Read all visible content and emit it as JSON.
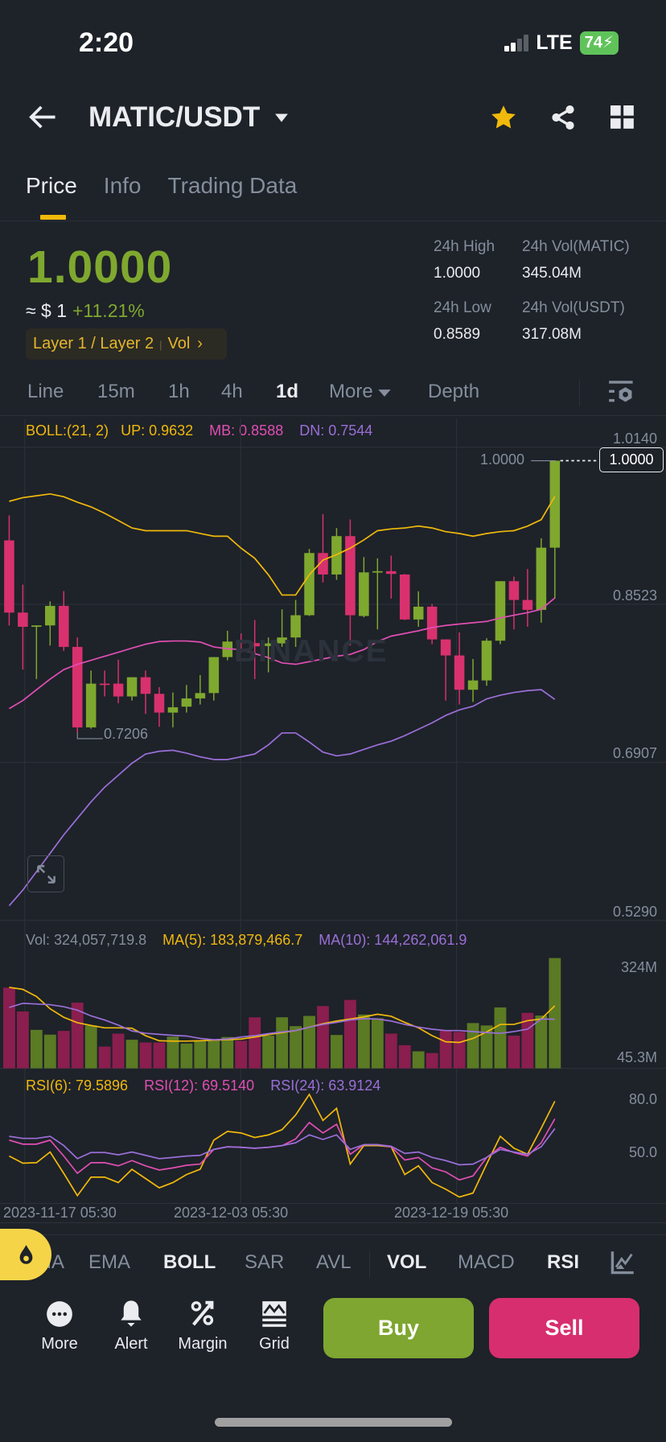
{
  "status_bar": {
    "time": "2:20",
    "network": "LTE",
    "battery": "74"
  },
  "header": {
    "pair": "MATIC/USDT"
  },
  "tabs": [
    {
      "label": "Price",
      "active": true
    },
    {
      "label": "Info"
    },
    {
      "label": "Trading Data"
    }
  ],
  "ticker": {
    "last_price": "1.0000",
    "usd_equiv": "≈ $ 1",
    "change": "+11.21%",
    "tag": "Layer 1 / Layer 2",
    "tag_vol": "Vol",
    "stats": [
      {
        "label": "24h High",
        "value": "1.0000"
      },
      {
        "label": "24h Vol(MATIC)",
        "value": "345.04M"
      },
      {
        "label": "24h Low",
        "value": "0.8589"
      },
      {
        "label": "24h Vol(USDT)",
        "value": "317.08M"
      }
    ]
  },
  "intervals": [
    {
      "label": "Line"
    },
    {
      "label": "15m"
    },
    {
      "label": "1h"
    },
    {
      "label": "4h"
    },
    {
      "label": "1d",
      "active": true
    },
    {
      "label": "More"
    },
    {
      "label": "Depth"
    }
  ],
  "boll_legend": {
    "params": "BOLL:(21, 2)",
    "up": "UP: 0.9632",
    "mb": "MB: 0.8588",
    "dn": "DN: 0.7544"
  },
  "price_axis": [
    "1.0140",
    "0.8523",
    "0.6907",
    "0.5290"
  ],
  "last_price_label": "1.0000",
  "last_price_box": "1.0000",
  "low_marker": "0.7206",
  "watermark": "BINANCE",
  "vol_legend": {
    "vol": "Vol: 324,057,719.8",
    "ma5": "MA(5): 183,879,466.7",
    "ma10": "MA(10): 144,262,061.9"
  },
  "vol_axis": [
    "324M",
    "45.3M"
  ],
  "rsi_legend": {
    "rsi6": "RSI(6): 79.5896",
    "rsi12": "RSI(12): 69.5140",
    "rsi24": "RSI(24): 63.9124"
  },
  "rsi_axis": [
    "80.0",
    "50.0"
  ],
  "time_axis": [
    "2023-11-17 05:30",
    "2023-12-03 05:30",
    "2023-12-19 05:30"
  ],
  "indicators": [
    {
      "label": "MA"
    },
    {
      "label": "EMA"
    },
    {
      "label": "BOLL",
      "on": true
    },
    {
      "label": "SAR"
    },
    {
      "label": "AVL"
    },
    {
      "label": "VOL",
      "on": true
    },
    {
      "label": "MACD"
    },
    {
      "label": "RSI",
      "on": true
    }
  ],
  "actions": [
    {
      "label": "More",
      "icon": "more-icon"
    },
    {
      "label": "Alert",
      "icon": "bell-icon"
    },
    {
      "label": "Margin",
      "icon": "percent-icon"
    },
    {
      "label": "Grid",
      "icon": "grid-bot-icon"
    }
  ],
  "buy_label": "Buy",
  "sell_label": "Sell",
  "colors": {
    "up": "#7fa82f",
    "down": "#d8316e",
    "accent": "#f0b90b",
    "boll_up": "#f0b90b",
    "boll_mb": "#e04fb3",
    "boll_dn": "#9a6fd8",
    "buy": "#7ea630",
    "sell": "#d72e6f"
  },
  "chart_data": {
    "type": "candlestick",
    "price_range": [
      0.529,
      1.014
    ],
    "candles": [
      [
        0.918,
        0.9437,
        0.8305,
        0.8437
      ],
      [
        0.8437,
        0.8725,
        0.785,
        0.8291
      ],
      [
        0.8297,
        0.8305,
        0.7753,
        0.8305
      ],
      [
        0.8305,
        0.8553,
        0.8098,
        0.8506
      ],
      [
        0.8506,
        0.8658,
        0.8043,
        0.8084
      ],
      [
        0.8084,
        0.8181,
        0.7206,
        0.7256
      ],
      [
        0.7256,
        0.7841,
        0.7242,
        0.7706
      ],
      [
        0.7706,
        0.7841,
        0.7574,
        0.7692
      ],
      [
        0.7706,
        0.7952,
        0.7505,
        0.7574
      ],
      [
        0.7574,
        0.7772,
        0.7532,
        0.7772
      ],
      [
        0.7772,
        0.7841,
        0.7394,
        0.7601
      ],
      [
        0.7601,
        0.767,
        0.7262,
        0.7408
      ],
      [
        0.7408,
        0.7615,
        0.7256,
        0.7463
      ],
      [
        0.7469,
        0.7692,
        0.7408,
        0.7554
      ],
      [
        0.7554,
        0.7794,
        0.7491,
        0.7609
      ],
      [
        0.7609,
        0.7979,
        0.7532,
        0.7979
      ],
      [
        0.7979,
        0.825,
        0.7946,
        0.8139
      ],
      [
        0.8139,
        0.8222,
        0.8029,
        0.8123
      ],
      [
        0.8123,
        0.836,
        0.7753,
        0.809
      ],
      [
        0.8093,
        0.8181,
        0.7822,
        0.812
      ],
      [
        0.812,
        0.8471,
        0.8084,
        0.8181
      ],
      [
        0.8181,
        0.8567,
        0.8084,
        0.841
      ],
      [
        0.841,
        0.9092,
        0.8402,
        0.905
      ],
      [
        0.905,
        0.945,
        0.8747,
        0.8829
      ],
      [
        0.8829,
        0.9307,
        0.8774,
        0.9224
      ],
      [
        0.9224,
        0.9395,
        0.8098,
        0.841
      ],
      [
        0.8402,
        0.9009,
        0.8388,
        0.8851
      ],
      [
        0.8854,
        0.8995,
        0.8264,
        0.8863
      ],
      [
        0.8863,
        0.9023,
        0.8581,
        0.8835
      ],
      [
        0.8829,
        0.8835,
        0.836,
        0.8366
      ],
      [
        0.8366,
        0.8656,
        0.8291,
        0.8498
      ],
      [
        0.8498,
        0.8526,
        0.8112,
        0.8161
      ],
      [
        0.8161,
        0.8161,
        0.7532,
        0.7996
      ],
      [
        0.7996,
        0.8233,
        0.7491,
        0.7643
      ],
      [
        0.7643,
        0.796,
        0.7518,
        0.7739
      ],
      [
        0.7739,
        0.8173,
        0.7684,
        0.8148
      ],
      [
        0.8148,
        0.876,
        0.8112,
        0.876
      ],
      [
        0.876,
        0.8807,
        0.8264,
        0.8567
      ],
      [
        0.8567,
        0.8885,
        0.8291,
        0.8465
      ],
      [
        0.8465,
        0.9202,
        0.8333,
        0.9105
      ],
      [
        0.9105,
        1.0,
        0.8581,
        1.0
      ]
    ],
    "candle_fields": [
      "open",
      "high",
      "low",
      "close"
    ],
    "boll_up": [
      0.9582,
      0.962,
      0.9639,
      0.9658,
      0.9629,
      0.9573,
      0.9525,
      0.9459,
      0.9384,
      0.9308,
      0.928,
      0.928,
      0.928,
      0.928,
      0.9251,
      0.9223,
      0.9223,
      0.91,
      0.8996,
      0.8826,
      0.8618,
      0.8618,
      0.8826,
      0.8977,
      0.9034,
      0.91,
      0.9185,
      0.928,
      0.9298,
      0.9308,
      0.9327,
      0.9308,
      0.927,
      0.9251,
      0.9223,
      0.9251,
      0.927,
      0.928,
      0.9327,
      0.9393,
      0.9632
    ],
    "boll_mb": [
      0.7449,
      0.7532,
      0.7643,
      0.7753,
      0.785,
      0.7905,
      0.7946,
      0.7988,
      0.8029,
      0.8071,
      0.8112,
      0.8139,
      0.8145,
      0.8145,
      0.8134,
      0.8084,
      0.8065,
      0.8057,
      0.8015,
      0.7974,
      0.7919,
      0.7905,
      0.7932,
      0.796,
      0.7988,
      0.8007,
      0.8057,
      0.8139,
      0.8195,
      0.8222,
      0.825,
      0.8283,
      0.8305,
      0.8319,
      0.8333,
      0.8346,
      0.8382,
      0.841,
      0.8437,
      0.8471,
      0.8588
    ],
    "boll_dn": [
      0.5421,
      0.5582,
      0.5771,
      0.596,
      0.615,
      0.632,
      0.649,
      0.6641,
      0.6764,
      0.6887,
      0.6982,
      0.701,
      0.702,
      0.6991,
      0.6953,
      0.6925,
      0.6925,
      0.6953,
      0.6982,
      0.7076,
      0.7199,
      0.7199,
      0.7105,
      0.7001,
      0.6963,
      0.6982,
      0.7029,
      0.7076,
      0.7114,
      0.7171,
      0.7237,
      0.7303,
      0.7379,
      0.7436,
      0.7473,
      0.7549,
      0.7587,
      0.7615,
      0.7634,
      0.7644,
      0.7544
    ],
    "volume_millions": [
      237,
      167,
      113,
      99,
      110,
      193,
      126,
      64,
      102,
      84,
      76,
      76,
      93,
      73,
      80,
      84,
      92,
      81,
      150,
      96,
      150,
      124,
      154,
      183,
      98,
      201,
      158,
      147,
      102,
      68,
      50,
      45,
      111,
      107,
      133,
      126,
      179,
      96,
      163,
      155,
      324
    ],
    "vol_ma5": [
      238,
      232,
      211,
      175,
      150,
      134,
      126,
      119,
      119,
      118,
      96,
      81,
      80,
      80,
      81,
      83,
      84,
      86,
      92,
      99,
      105,
      111,
      121,
      131,
      139,
      145,
      151,
      159,
      153,
      135,
      119,
      96,
      78,
      76,
      88,
      107,
      129,
      129,
      140,
      145,
      183.9
    ],
    "vol_ma10": [
      179,
      191,
      189,
      187,
      181,
      171,
      154,
      142,
      127,
      110,
      103,
      100,
      97,
      95,
      88,
      84,
      86,
      92,
      96,
      102,
      107,
      111,
      121,
      129,
      135,
      142,
      146,
      145,
      139,
      129,
      121,
      115,
      111,
      111,
      108,
      105,
      103,
      108,
      115,
      145,
      144.3
    ],
    "rsi6": [
      48.2,
      44.1,
      44.4,
      50.5,
      38.3,
      25.5,
      36.1,
      36.1,
      33.0,
      40.6,
      35.3,
      30.0,
      33.0,
      37.6,
      40.6,
      57.3,
      62.3,
      61.4,
      58.8,
      60.3,
      63.3,
      71.7,
      83.5,
      68.6,
      75.5,
      43.6,
      54.2,
      54.2,
      53.5,
      37.6,
      42.6,
      33.0,
      29.2,
      24.7,
      27.0,
      43.6,
      59.5,
      52.7,
      49.2,
      64.1,
      79.6
    ],
    "rsi12": [
      57.3,
      55.0,
      55.0,
      57.3,
      48.2,
      38.3,
      44.4,
      44.4,
      42.6,
      45.6,
      42.6,
      40.2,
      41.4,
      42.9,
      43.6,
      52.0,
      53.5,
      53.2,
      52.6,
      53.2,
      54.1,
      58.0,
      67.4,
      61.4,
      66.4,
      49.2,
      54.7,
      54.7,
      53.5,
      45.9,
      47.4,
      41.4,
      39.1,
      34.5,
      36.8,
      47.4,
      53.2,
      50.2,
      48.2,
      55.8,
      69.5
    ],
    "rsi24": [
      59.5,
      58.3,
      58.3,
      59.5,
      54.2,
      46.7,
      50.2,
      50.2,
      48.9,
      50.5,
      48.6,
      46.7,
      47.4,
      48.2,
      48.6,
      52.0,
      53.5,
      53.2,
      52.7,
      53.2,
      54.2,
      55.8,
      60.3,
      57.7,
      60.3,
      52.0,
      54.7,
      54.7,
      53.8,
      49.7,
      50.5,
      47.4,
      45.6,
      43.2,
      43.6,
      47.4,
      52.0,
      50.5,
      49.2,
      53.5,
      63.9
    ],
    "rsi_range": [
      0,
      100
    ]
  }
}
